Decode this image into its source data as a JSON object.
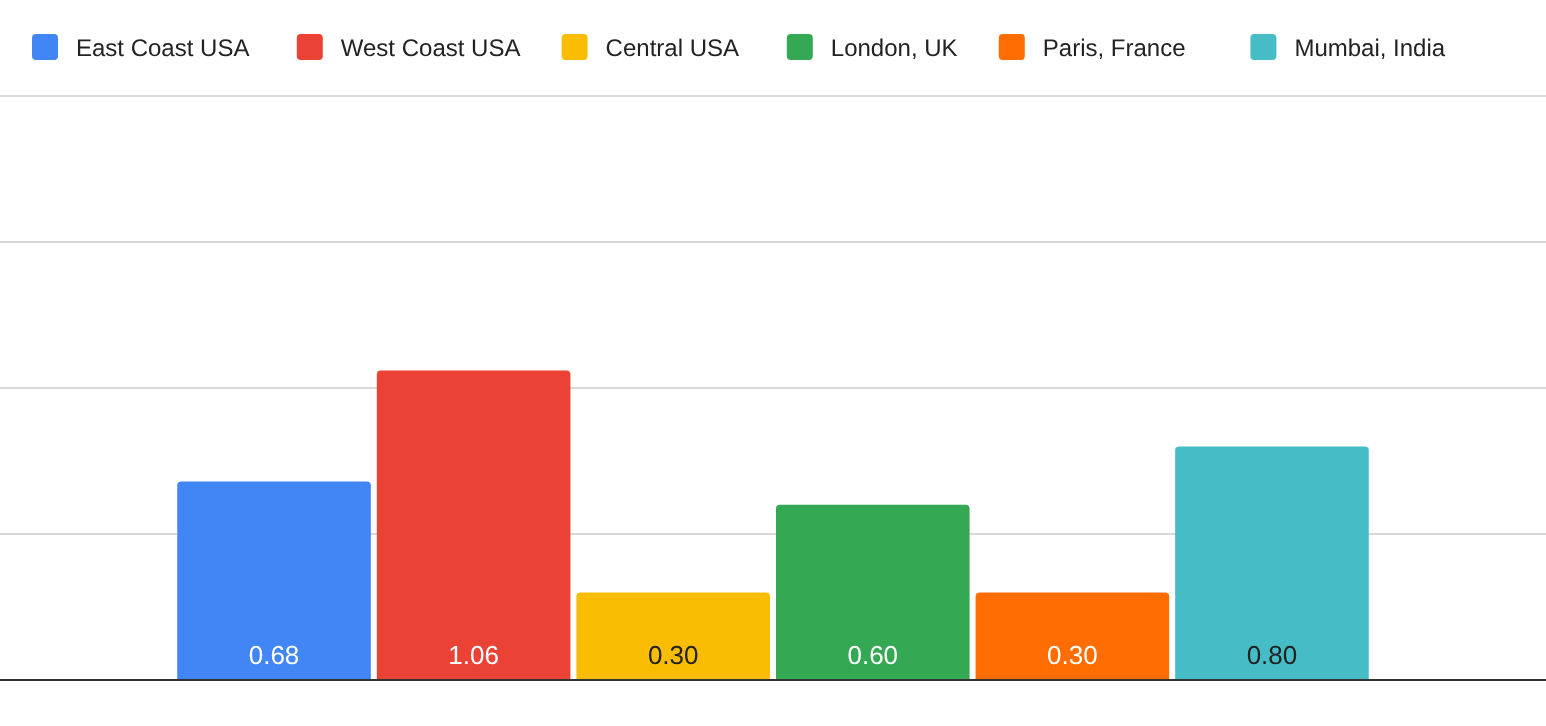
{
  "chart_data": {
    "type": "bar",
    "categories": [
      null
    ],
    "series": [
      {
        "name": "East Coast USA",
        "color": "#4285f4",
        "values": [
          0.68
        ],
        "value_labels": [
          "0.68"
        ]
      },
      {
        "name": "West Coast USA",
        "color": "#ea4335",
        "values": [
          1.06
        ],
        "value_labels": [
          "1.06"
        ]
      },
      {
        "name": "Central USA",
        "color": "#fbbc04",
        "values": [
          0.3
        ],
        "value_labels": [
          "0.30"
        ]
      },
      {
        "name": "London, UK",
        "color": "#34a853",
        "values": [
          0.6
        ],
        "value_labels": [
          "0.60"
        ]
      },
      {
        "name": "Paris, France",
        "color": "#ff6d01",
        "values": [
          0.3
        ],
        "value_labels": [
          "0.30"
        ]
      },
      {
        "name": "Mumbai, India",
        "color": "#46bdc6",
        "values": [
          0.8
        ],
        "value_labels": [
          "0.80"
        ]
      }
    ],
    "ylim": [
      0,
      2
    ],
    "yticks": [
      {
        "value": 0,
        "label": null
      },
      {
        "value": 0.5,
        "label": null
      },
      {
        "value": 1,
        "label": null
      },
      {
        "value": 1.5,
        "label": null
      },
      {
        "value": 2,
        "label": null
      }
    ],
    "grid": "y",
    "legend": "top left"
  }
}
